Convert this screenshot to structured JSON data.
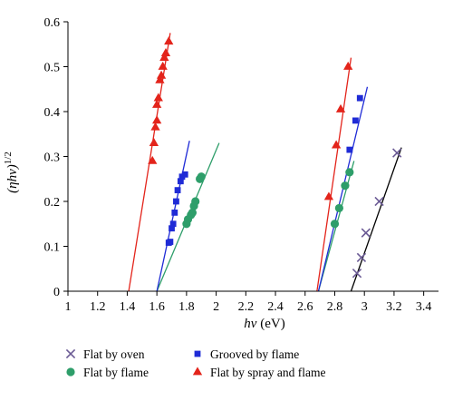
{
  "chart_data": {
    "type": "scatter",
    "xlabel": "hν (eV)",
    "ylabel": "(ηhν)^1/2",
    "xlim": [
      1,
      3.5
    ],
    "ylim": [
      0,
      0.6
    ],
    "xticks": [
      "1",
      "1.2",
      "1.4",
      "1.6",
      "1.8",
      "2",
      "2.2",
      "2.4",
      "2.6",
      "2.8",
      "3",
      "3.2",
      "3.4"
    ],
    "yticks": [
      "0",
      "0.1",
      "0.2",
      "0.3",
      "0.4",
      "0.5",
      "0.6"
    ],
    "legend_position": "bottom",
    "series": [
      {
        "name": "Flat by oven",
        "marker": "x",
        "color": "#6b5b95",
        "points": [
          [
            2.95,
            0.04
          ],
          [
            2.98,
            0.075
          ],
          [
            3.01,
            0.13
          ],
          [
            3.1,
            0.2
          ],
          [
            3.22,
            0.308
          ]
        ],
        "fit_line": [
          [
            2.91,
            0.0
          ],
          [
            3.25,
            0.32
          ]
        ],
        "line_color": "#000000"
      },
      {
        "name": "Flat by flame",
        "marker": "circle",
        "color": "#2e9e6a",
        "points": [
          [
            1.8,
            0.15
          ],
          [
            1.81,
            0.16
          ],
          [
            1.83,
            0.17
          ],
          [
            1.84,
            0.175
          ],
          [
            1.85,
            0.19
          ],
          [
            1.86,
            0.2
          ],
          [
            1.89,
            0.25
          ],
          [
            1.9,
            0.255
          ],
          [
            2.8,
            0.15
          ],
          [
            2.83,
            0.185
          ],
          [
            2.87,
            0.235
          ],
          [
            2.9,
            0.265
          ]
        ],
        "fit_lines": [
          [
            [
              1.6,
              0.0
            ],
            [
              2.02,
              0.33
            ]
          ],
          [
            [
              2.69,
              0.0
            ],
            [
              2.93,
              0.29
            ]
          ]
        ],
        "line_color": "#2e9e6a"
      },
      {
        "name": "Grooved by flame",
        "marker": "square",
        "color": "#1f2bd6",
        "points": [
          [
            1.68,
            0.108
          ],
          [
            1.69,
            0.11
          ],
          [
            1.7,
            0.14
          ],
          [
            1.71,
            0.15
          ],
          [
            1.72,
            0.175
          ],
          [
            1.73,
            0.2
          ],
          [
            1.74,
            0.225
          ],
          [
            1.76,
            0.245
          ],
          [
            1.77,
            0.255
          ],
          [
            1.79,
            0.26
          ],
          [
            2.9,
            0.315
          ],
          [
            2.94,
            0.38
          ],
          [
            2.97,
            0.43
          ]
        ],
        "fit_lines": [
          [
            [
              1.6,
              0.0
            ],
            [
              1.82,
              0.335
            ]
          ],
          [
            [
              2.69,
              0.0
            ],
            [
              3.02,
              0.455
            ]
          ]
        ],
        "line_color": "#1f2bd6"
      },
      {
        "name": "Flat by spray and flame",
        "marker": "triangle",
        "color": "#e3241b",
        "points": [
          [
            1.57,
            0.29
          ],
          [
            1.58,
            0.33
          ],
          [
            1.59,
            0.365
          ],
          [
            1.6,
            0.38
          ],
          [
            1.6,
            0.415
          ],
          [
            1.61,
            0.43
          ],
          [
            1.62,
            0.47
          ],
          [
            1.63,
            0.48
          ],
          [
            1.64,
            0.5
          ],
          [
            1.65,
            0.52
          ],
          [
            1.66,
            0.53
          ],
          [
            1.68,
            0.556
          ],
          [
            2.76,
            0.21
          ],
          [
            2.81,
            0.325
          ],
          [
            2.84,
            0.405
          ],
          [
            2.89,
            0.5
          ]
        ],
        "fit_lines": [
          [
            [
              1.41,
              0.0
            ],
            [
              1.69,
              0.575
            ]
          ],
          [
            [
              2.68,
              0.0
            ],
            [
              2.91,
              0.52
            ]
          ]
        ],
        "line_color": "#e3241b"
      }
    ]
  }
}
